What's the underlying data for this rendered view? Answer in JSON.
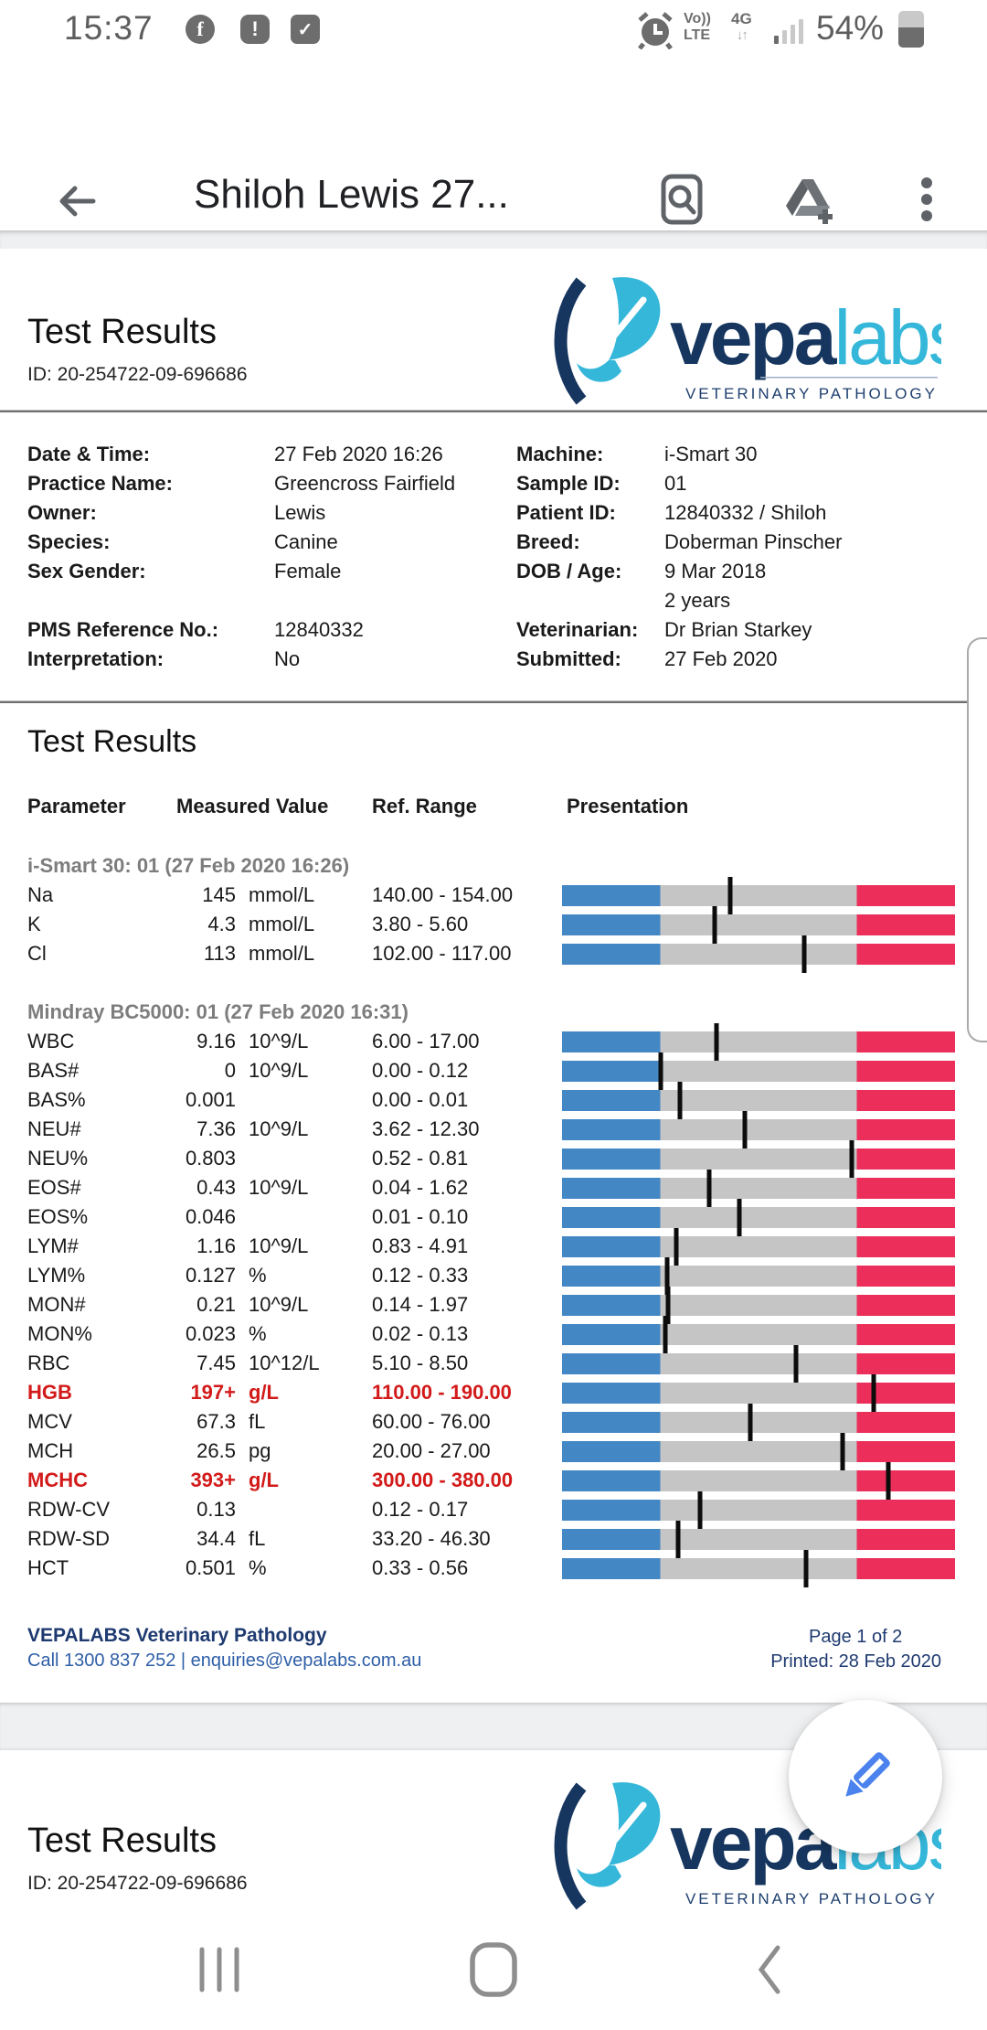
{
  "status_bar": {
    "time": "15:37",
    "battery_percent": "54%",
    "volte_line1": "Vo))",
    "volte_line2": "LTE",
    "network": "4G",
    "facebook_glyph": "f",
    "alert_glyph": "!",
    "check_glyph": "✓"
  },
  "app_bar": {
    "title": "Shiloh Lewis 27..."
  },
  "doc": {
    "page1": {
      "title": "Test Results",
      "id": "ID: 20-254722-09-696686",
      "logo": {
        "paren": "(",
        "word1": "vepa",
        "word2": "labs",
        "tagline": "VETERINARY PATHOLOGY"
      },
      "info": {
        "rows": [
          {
            "l_label": "Date & Time:",
            "l_value": "27 Feb 2020 16:26",
            "r_label": "Machine:",
            "r_value": "i-Smart 30"
          },
          {
            "l_label": "Practice Name:",
            "l_value": "Greencross Fairfield",
            "r_label": "Sample ID:",
            "r_value": "01"
          },
          {
            "l_label": "Owner:",
            "l_value": "Lewis",
            "r_label": "Patient ID:",
            "r_value": "12840332 / Shiloh"
          },
          {
            "l_label": "Species:",
            "l_value": "Canine",
            "r_label": "Breed:",
            "r_value": "Doberman Pinscher"
          },
          {
            "l_label": "Sex Gender:",
            "l_value": "Female",
            "r_label": "DOB / Age:",
            "r_value": "9 Mar 2018"
          },
          {
            "l_label": "",
            "l_value": "",
            "r_label": "",
            "r_value": "2 years"
          },
          {
            "l_label": "PMS Reference No.:",
            "l_value": "12840332",
            "r_label": "Veterinarian:",
            "r_value": "Dr Brian Starkey"
          },
          {
            "l_label": "Interpretation:",
            "l_value": "No",
            "r_label": "Submitted:",
            "r_value": "27 Feb 2020"
          }
        ]
      },
      "results": {
        "heading": "Test Results",
        "columns": [
          "Parameter",
          "Measured Value",
          "Ref. Range",
          "Presentation"
        ],
        "sections": [
          {
            "header": "i-Smart 30: 01 (27 Feb 2020 16:26)",
            "rows": [
              {
                "param": "Na",
                "value": "145",
                "value_num": 145,
                "unit": "mmol/L",
                "range": "140.00 - 154.00",
                "min": 140,
                "max": 154,
                "alert": false
              },
              {
                "param": "K",
                "value": "4.3",
                "value_num": 4.3,
                "unit": "mmol/L",
                "range": "3.80 - 5.60",
                "min": 3.8,
                "max": 5.6,
                "alert": false
              },
              {
                "param": "Cl",
                "value": "113",
                "value_num": 113,
                "unit": "mmol/L",
                "range": "102.00 - 117.00",
                "min": 102,
                "max": 117,
                "alert": false
              }
            ]
          },
          {
            "header": "Mindray BC5000: 01 (27 Feb 2020 16:31)",
            "rows": [
              {
                "param": "WBC",
                "value": "9.16",
                "value_num": 9.16,
                "unit": "10^9/L",
                "range": "6.00 - 17.00",
                "min": 6,
                "max": 17,
                "alert": false
              },
              {
                "param": "BAS#",
                "value": "0",
                "value_num": 0,
                "unit": "10^9/L",
                "range": "0.00 - 0.12",
                "min": 0,
                "max": 0.12,
                "alert": false
              },
              {
                "param": "BAS%",
                "value": "0.001",
                "value_num": 0.001,
                "unit": "",
                "range": "0.00 - 0.01",
                "min": 0,
                "max": 0.01,
                "alert": false
              },
              {
                "param": "NEU#",
                "value": "7.36",
                "value_num": 7.36,
                "unit": "10^9/L",
                "range": "3.62 - 12.30",
                "min": 3.62,
                "max": 12.3,
                "alert": false
              },
              {
                "param": "NEU%",
                "value": "0.803",
                "value_num": 0.803,
                "unit": "",
                "range": "0.52 - 0.81",
                "min": 0.52,
                "max": 0.81,
                "alert": false
              },
              {
                "param": "EOS#",
                "value": "0.43",
                "value_num": 0.43,
                "unit": "10^9/L",
                "range": "0.04 - 1.62",
                "min": 0.04,
                "max": 1.62,
                "alert": false
              },
              {
                "param": "EOS%",
                "value": "0.046",
                "value_num": 0.046,
                "unit": "",
                "range": "0.01 - 0.10",
                "min": 0.01,
                "max": 0.1,
                "alert": false
              },
              {
                "param": "LYM#",
                "value": "1.16",
                "value_num": 1.16,
                "unit": "10^9/L",
                "range": "0.83 - 4.91",
                "min": 0.83,
                "max": 4.91,
                "alert": false
              },
              {
                "param": "LYM%",
                "value": "0.127",
                "value_num": 0.127,
                "unit": "%",
                "range": "0.12 - 0.33",
                "min": 0.12,
                "max": 0.33,
                "alert": false
              },
              {
                "param": "MON#",
                "value": "0.21",
                "value_num": 0.21,
                "unit": "10^9/L",
                "range": "0.14 - 1.97",
                "min": 0.14,
                "max": 1.97,
                "alert": false
              },
              {
                "param": "MON%",
                "value": "0.023",
                "value_num": 0.023,
                "unit": "%",
                "range": "0.02 - 0.13",
                "min": 0.02,
                "max": 0.13,
                "alert": false
              },
              {
                "param": "RBC",
                "value": "7.45",
                "value_num": 7.45,
                "unit": "10^12/L",
                "range": "5.10 - 8.50",
                "min": 5.1,
                "max": 8.5,
                "alert": false
              },
              {
                "param": "HGB",
                "value": "197+",
                "value_num": 197,
                "unit": "g/L",
                "range": "110.00 - 190.00",
                "min": 110,
                "max": 190,
                "alert": true
              },
              {
                "param": "MCV",
                "value": "67.3",
                "value_num": 67.3,
                "unit": "fL",
                "range": "60.00 - 76.00",
                "min": 60,
                "max": 76,
                "alert": false
              },
              {
                "param": "MCH",
                "value": "26.5",
                "value_num": 26.5,
                "unit": "pg",
                "range": "20.00 - 27.00",
                "min": 20,
                "max": 27,
                "alert": false
              },
              {
                "param": "MCHC",
                "value": "393+",
                "value_num": 393,
                "unit": "g/L",
                "range": "300.00 - 380.00",
                "min": 300,
                "max": 380,
                "alert": true
              },
              {
                "param": "RDW-CV",
                "value": "0.13",
                "value_num": 0.13,
                "unit": "",
                "range": "0.12 - 0.17",
                "min": 0.12,
                "max": 0.17,
                "alert": false
              },
              {
                "param": "RDW-SD",
                "value": "34.4",
                "value_num": 34.4,
                "unit": "fL",
                "range": "33.20 - 46.30",
                "min": 33.2,
                "max": 46.3,
                "alert": false
              },
              {
                "param": "HCT",
                "value": "0.501",
                "value_num": 0.501,
                "unit": "%",
                "range": "0.33 - 0.56",
                "min": 0.33,
                "max": 0.56,
                "alert": false
              }
            ]
          }
        ]
      },
      "footer": {
        "org": "VEPALABS Veterinary Pathology",
        "contact": "Call 1300 837 252  |  enquiries@vepalabs.com.au",
        "page": "Page 1 of 2",
        "printed": "Printed: 28 Feb 2020"
      }
    },
    "page2": {
      "title": "Test Results",
      "id": "ID: 20-254722-09-696686",
      "logo": {
        "paren": "(",
        "word1": "vepa",
        "word2": "labs",
        "tagline": "VETERINARY PATHOLOGY"
      }
    }
  },
  "colors": {
    "bar_blue": "#4487c5",
    "bar_gray": "#c5c5c5",
    "bar_pink": "#ec2e5a",
    "alert_red": "#d31a1a",
    "logo_navy": "#16365f",
    "logo_cyan": "#35b7da",
    "footer_navy": "#1e3a70",
    "footer_blue": "#2e5ea7",
    "fab_pencil": "#4b82ee"
  }
}
